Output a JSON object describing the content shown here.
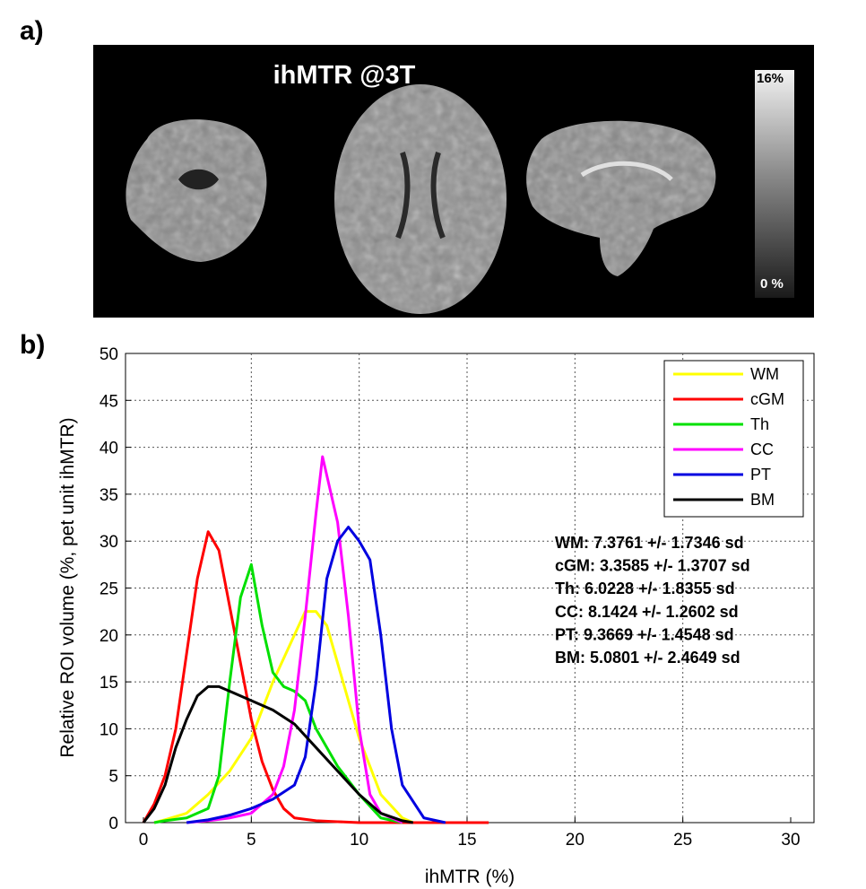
{
  "panel_labels": {
    "a": "a)",
    "b": "b)"
  },
  "image_panel": {
    "title": "ihMTR @3T",
    "colorbar_max": "16%",
    "colorbar_min": "0 %",
    "colors": {
      "background": "#000000",
      "tissue": "#9a9a9a"
    }
  },
  "chart_data": {
    "type": "line",
    "xlabel": "ihMTR (%)",
    "ylabel": "Relative ROI volume (%, pet unit ihMTR)",
    "xlim": [
      0,
      30
    ],
    "ylim": [
      0,
      50
    ],
    "xticks": [
      "0",
      "5",
      "10",
      "15",
      "20",
      "25",
      "30"
    ],
    "yticks": [
      "0",
      "5",
      "10",
      "15",
      "20",
      "25",
      "30",
      "35",
      "40",
      "45",
      "50"
    ],
    "grid": true,
    "legend_position": "top-right",
    "series": [
      {
        "name": "WM",
        "color": "#ffff00",
        "x": [
          0.5,
          1,
          2,
          3,
          4,
          5,
          6,
          7,
          7.5,
          8,
          8.5,
          9,
          10,
          11,
          12,
          12.5
        ],
        "y": [
          0,
          0.3,
          1,
          3,
          5.5,
          9,
          15,
          20,
          22.5,
          22.5,
          21,
          17,
          9,
          3,
          0.5,
          0
        ]
      },
      {
        "name": "cGM",
        "color": "#ff0000",
        "x": [
          0,
          0.5,
          1,
          1.5,
          2,
          2.5,
          3,
          3.5,
          4,
          4.5,
          5,
          5.5,
          6,
          6.5,
          7,
          8,
          9,
          10,
          11,
          12,
          13,
          14,
          15,
          16
        ],
        "y": [
          0,
          2,
          5,
          10,
          18,
          26,
          31,
          29,
          23,
          17,
          11,
          6.5,
          3.5,
          1.5,
          0.5,
          0.2,
          0.1,
          0,
          0,
          0,
          0,
          0,
          0,
          0
        ]
      },
      {
        "name": "Th",
        "color": "#00e000",
        "x": [
          0.5,
          1,
          2,
          3,
          3.5,
          4,
          4.5,
          5,
          5.5,
          6,
          6.5,
          7,
          7.5,
          8,
          9,
          10,
          11,
          12
        ],
        "y": [
          0,
          0.2,
          0.5,
          1.5,
          5,
          15,
          24,
          27.5,
          21,
          16,
          14.5,
          14,
          13,
          10,
          6,
          3,
          0.5,
          0
        ]
      },
      {
        "name": "CC",
        "color": "#ff00ff",
        "x": [
          2,
          3,
          4,
          5,
          6,
          6.5,
          7,
          7.5,
          8,
          8.3,
          8.6,
          9,
          9.5,
          10,
          10.5,
          11,
          12
        ],
        "y": [
          0,
          0.2,
          0.5,
          1,
          3,
          6,
          12,
          22,
          33,
          39,
          36,
          32,
          22,
          10,
          3,
          1,
          0
        ]
      },
      {
        "name": "PT",
        "color": "#0000e0",
        "x": [
          2,
          3,
          4,
          5,
          6,
          7,
          7.5,
          8,
          8.5,
          9,
          9.5,
          10,
          10.5,
          11,
          11.5,
          12,
          13,
          14
        ],
        "y": [
          0,
          0.3,
          0.8,
          1.5,
          2.5,
          4,
          7,
          15,
          26,
          30,
          31.5,
          30,
          28,
          20,
          10,
          4,
          0.5,
          0
        ]
      },
      {
        "name": "BM",
        "color": "#000000",
        "x": [
          0,
          0.5,
          1,
          1.5,
          2,
          2.5,
          3,
          3.5,
          4,
          5,
          6,
          7,
          8,
          9,
          10,
          11,
          12,
          12.5
        ],
        "y": [
          0,
          1.5,
          4,
          8,
          11,
          13.5,
          14.5,
          14.5,
          14,
          13,
          12,
          10.5,
          8,
          5.5,
          3,
          1,
          0.2,
          0
        ]
      }
    ],
    "annotations": [
      "WM: 7.3761 +/- 1.7346 sd",
      "cGM: 3.3585 +/- 1.3707 sd",
      "Th: 6.0228 +/- 1.8355 sd",
      "CC: 8.1424 +/- 1.2602 sd",
      "PT: 9.3669 +/- 1.4548 sd",
      "BM: 5.0801 +/- 2.4649 sd"
    ]
  }
}
